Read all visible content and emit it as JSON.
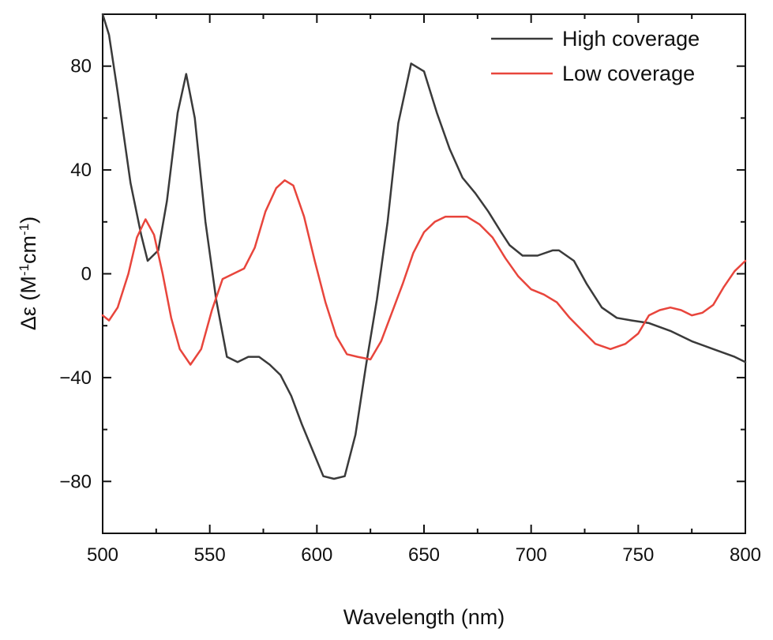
{
  "chart_data": {
    "type": "line",
    "title": "",
    "xlabel": "Wavelength (nm)",
    "ylabel": "Δε (M⁻¹cm⁻¹)",
    "ylabel_parts": {
      "prefix": "Δε (M",
      "sup1": "-1",
      "mid": "cm",
      "sup2": "-1",
      "suffix": ")"
    },
    "xlim": [
      500,
      800
    ],
    "ylim": [
      -100,
      100
    ],
    "x_ticks": [
      {
        "value": 500,
        "label": "500"
      },
      {
        "value": 550,
        "label": "550"
      },
      {
        "value": 600,
        "label": "600"
      },
      {
        "value": 650,
        "label": "650"
      },
      {
        "value": 700,
        "label": "700"
      },
      {
        "value": 750,
        "label": "750"
      },
      {
        "value": 800,
        "label": "800"
      }
    ],
    "y_ticks": [
      {
        "value": 80,
        "label": "80"
      },
      {
        "value": 40,
        "label": "40"
      },
      {
        "value": 0,
        "label": "0"
      },
      {
        "value": -40,
        "label": "−40"
      },
      {
        "value": -80,
        "label": "−80"
      }
    ],
    "grid": false,
    "legend_position": "top-right",
    "series": [
      {
        "name": "High coverage",
        "color": "#3a3a3a",
        "points": [
          [
            500,
            100
          ],
          [
            503,
            92
          ],
          [
            507,
            70
          ],
          [
            513,
            35
          ],
          [
            518,
            15
          ],
          [
            521,
            5
          ],
          [
            526,
            9
          ],
          [
            530,
            28
          ],
          [
            535,
            62
          ],
          [
            539,
            77
          ],
          [
            543,
            60
          ],
          [
            548,
            20
          ],
          [
            553,
            -10
          ],
          [
            558,
            -32
          ],
          [
            563,
            -34
          ],
          [
            568,
            -32
          ],
          [
            573,
            -32
          ],
          [
            578,
            -35
          ],
          [
            583,
            -39
          ],
          [
            588,
            -47
          ],
          [
            593,
            -58
          ],
          [
            598,
            -68
          ],
          [
            603,
            -78
          ],
          [
            608,
            -79
          ],
          [
            613,
            -78
          ],
          [
            618,
            -62
          ],
          [
            623,
            -35
          ],
          [
            628,
            -10
          ],
          [
            633,
            20
          ],
          [
            638,
            58
          ],
          [
            644,
            81
          ],
          [
            650,
            78
          ],
          [
            656,
            62
          ],
          [
            662,
            48
          ],
          [
            668,
            37
          ],
          [
            674,
            31
          ],
          [
            680,
            24
          ],
          [
            686,
            16
          ],
          [
            690,
            11
          ],
          [
            696,
            7
          ],
          [
            703,
            7
          ],
          [
            710,
            9
          ],
          [
            713,
            9
          ],
          [
            720,
            5
          ],
          [
            726,
            -4
          ],
          [
            733,
            -13
          ],
          [
            740,
            -17
          ],
          [
            747,
            -18
          ],
          [
            755,
            -19
          ],
          [
            765,
            -22
          ],
          [
            775,
            -26
          ],
          [
            785,
            -29
          ],
          [
            795,
            -32
          ],
          [
            800,
            -34
          ]
        ]
      },
      {
        "name": "Low coverage",
        "color": "#e8453c",
        "points": [
          [
            500,
            -16
          ],
          [
            503,
            -18
          ],
          [
            507,
            -13
          ],
          [
            512,
            0
          ],
          [
            516,
            14
          ],
          [
            520,
            21
          ],
          [
            524,
            15
          ],
          [
            528,
            0
          ],
          [
            532,
            -17
          ],
          [
            536,
            -29
          ],
          [
            541,
            -35
          ],
          [
            546,
            -29
          ],
          [
            551,
            -14
          ],
          [
            556,
            -2
          ],
          [
            561,
            0
          ],
          [
            566,
            2
          ],
          [
            571,
            10
          ],
          [
            576,
            24
          ],
          [
            581,
            33
          ],
          [
            585,
            36
          ],
          [
            589,
            34
          ],
          [
            594,
            22
          ],
          [
            599,
            5
          ],
          [
            604,
            -11
          ],
          [
            609,
            -24
          ],
          [
            614,
            -31
          ],
          [
            619,
            -32
          ],
          [
            625,
            -33
          ],
          [
            630,
            -26
          ],
          [
            635,
            -15
          ],
          [
            640,
            -4
          ],
          [
            645,
            8
          ],
          [
            650,
            16
          ],
          [
            655,
            20
          ],
          [
            660,
            22
          ],
          [
            665,
            22
          ],
          [
            670,
            22
          ],
          [
            676,
            19
          ],
          [
            682,
            14
          ],
          [
            688,
            6
          ],
          [
            694,
            -1
          ],
          [
            700,
            -6
          ],
          [
            706,
            -8
          ],
          [
            712,
            -11
          ],
          [
            718,
            -17
          ],
          [
            724,
            -22
          ],
          [
            730,
            -27
          ],
          [
            737,
            -29
          ],
          [
            744,
            -27
          ],
          [
            750,
            -23
          ],
          [
            755,
            -16
          ],
          [
            760,
            -14
          ],
          [
            765,
            -13
          ],
          [
            770,
            -14
          ],
          [
            775,
            -16
          ],
          [
            780,
            -15
          ],
          [
            785,
            -12
          ],
          [
            790,
            -5
          ],
          [
            795,
            1
          ],
          [
            800,
            5
          ]
        ]
      }
    ]
  }
}
